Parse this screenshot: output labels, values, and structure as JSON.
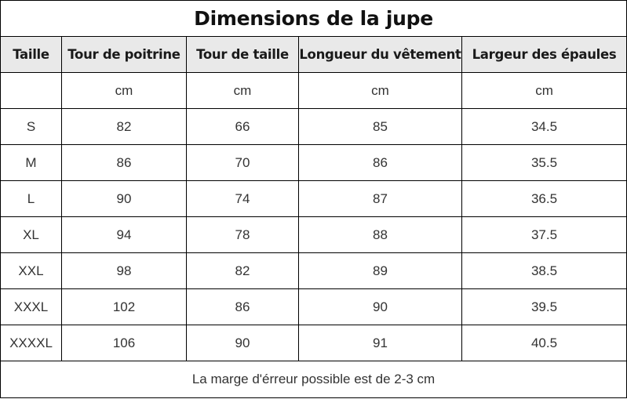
{
  "title": "Dimensions de la jupe",
  "columns": [
    "Taille",
    "Tour de poitrine",
    "Tour de taille",
    "Longueur du vêtement",
    "Largeur des épaules"
  ],
  "units": [
    "",
    "cm",
    "cm",
    "cm",
    "cm"
  ],
  "rows": [
    [
      "S",
      "82",
      "66",
      "85",
      "34.5"
    ],
    [
      "M",
      "86",
      "70",
      "86",
      "35.5"
    ],
    [
      "L",
      "90",
      "74",
      "87",
      "36.5"
    ],
    [
      "XL",
      "94",
      "78",
      "88",
      "37.5"
    ],
    [
      "XXL",
      "98",
      "82",
      "89",
      "38.5"
    ],
    [
      "XXXL",
      "102",
      "86",
      "90",
      "39.5"
    ],
    [
      "XXXXL",
      "106",
      "90",
      "91",
      "40.5"
    ]
  ],
  "note": "La marge d'érreur possible est de 2-3 cm"
}
